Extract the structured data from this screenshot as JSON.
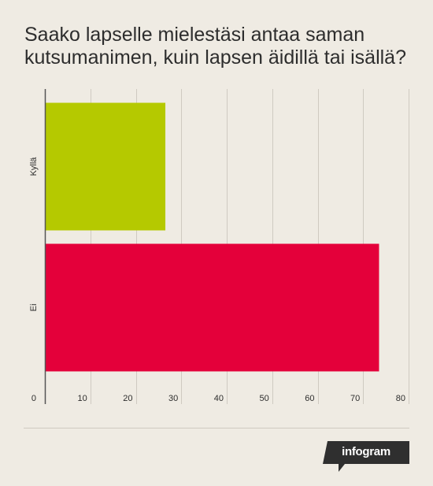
{
  "title_lines": [
    "Saako lapselle mielestäsi antaa saman",
    "kutsumanimen, kuin lapsen äidillä tai isällä?"
  ],
  "brand": "infogram",
  "colors": {
    "background": "#efebe3",
    "grid": "#cfcac1",
    "axis": "#555555",
    "text": "#2d2d2d"
  },
  "chart_data": {
    "type": "bar",
    "orientation": "horizontal",
    "categories": [
      "Kyllä",
      "Ei"
    ],
    "values": [
      26.5,
      73.5
    ],
    "colors": [
      "#b5c900",
      "#e4003a"
    ],
    "xlim": [
      0,
      80
    ],
    "xticks": [
      0,
      10,
      20,
      30,
      40,
      50,
      60,
      70,
      80
    ],
    "grid": true,
    "legend": "none"
  }
}
